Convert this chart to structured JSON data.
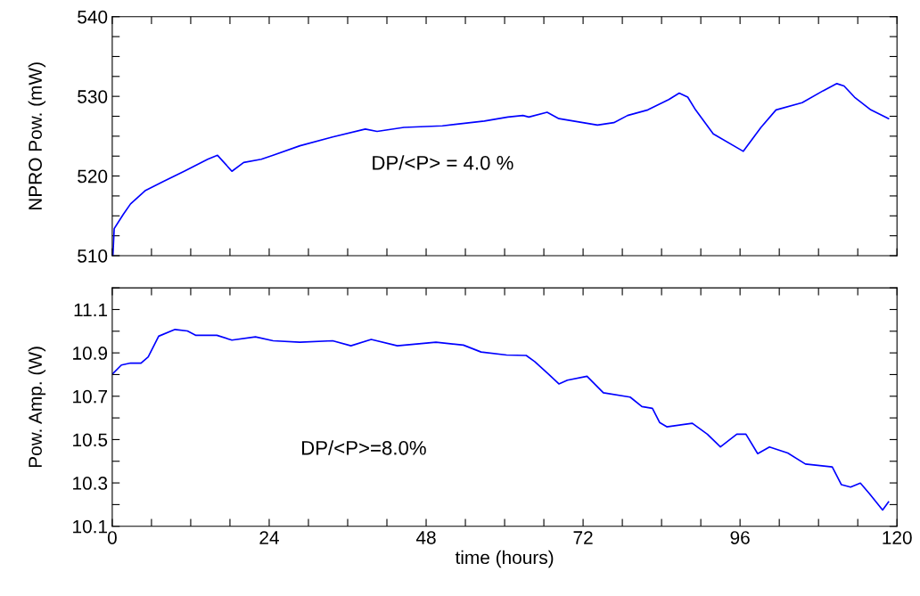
{
  "chart_data": [
    {
      "type": "line",
      "ylabel": "NPRO Pow. (mW)",
      "tick_labels": "y",
      "grid": false,
      "legend": false,
      "xlim": [
        0,
        120
      ],
      "xticks": [
        0,
        {
          "value": 6,
          "label": null
        },
        {
          "value": 12,
          "label": null
        },
        {
          "value": 18,
          "label": null
        },
        24,
        {
          "value": 30,
          "label": null
        },
        {
          "value": 36,
          "label": null
        },
        {
          "value": 42,
          "label": null
        },
        48,
        {
          "value": 54,
          "label": null
        },
        {
          "value": 60,
          "label": null
        },
        {
          "value": 66,
          "label": null
        },
        72,
        {
          "value": 78,
          "label": null
        },
        {
          "value": 84,
          "label": null
        },
        {
          "value": 90,
          "label": null
        },
        96,
        {
          "value": 102,
          "label": null
        },
        {
          "value": 108,
          "label": null
        },
        {
          "value": 114,
          "label": null
        },
        120
      ],
      "ylim": [
        510,
        540
      ],
      "yticks": [
        510,
        {
          "value": 512.5,
          "label": null
        },
        {
          "value": 515,
          "label": null
        },
        {
          "value": 517.5,
          "label": null
        },
        520,
        {
          "value": 522.5,
          "label": null
        },
        {
          "value": 525,
          "label": null
        },
        {
          "value": 527.5,
          "label": null
        },
        530,
        {
          "value": 532.5,
          "label": null
        },
        {
          "value": 535,
          "label": null
        },
        {
          "value": 537.5,
          "label": null
        },
        540
      ],
      "annotations": [
        "DP/<P> = 4.0 %"
      ],
      "series": [
        {
          "color": "#0000ff",
          "line_style": "solid",
          "marker": "none",
          "x": [
            0.1,
            0.3,
            1.7,
            2.8,
            5.1,
            7.8,
            11.0,
            14.6,
            16.1,
            18.3,
            20.1,
            22.8,
            24.6,
            28.7,
            33.7,
            38.7,
            40.5,
            44.6,
            50.5,
            56.9,
            60.5,
            62.8,
            63.7,
            66.5,
            68.3,
            74.2,
            76.7,
            78.8,
            81.9,
            85.1,
            86.7,
            88.0,
            89.2,
            91.9,
            96.5,
            99.2,
            101.5,
            105.5,
            108.7,
            110.8,
            111.9,
            113.5,
            116.0,
            118.7
          ],
          "values": [
            510.0,
            513.4,
            515.2,
            516.5,
            518.2,
            519.3,
            520.6,
            522.1,
            522.6,
            520.6,
            521.7,
            522.1,
            522.6,
            523.8,
            524.9,
            525.9,
            525.6,
            526.1,
            526.3,
            526.9,
            527.4,
            527.6,
            527.4,
            528.0,
            527.2,
            526.4,
            526.7,
            527.6,
            528.3,
            529.6,
            530.4,
            529.9,
            528.3,
            525.3,
            523.1,
            526.1,
            528.3,
            529.2,
            530.7,
            531.6,
            531.3,
            529.9,
            528.3,
            527.2
          ]
        }
      ]
    },
    {
      "type": "line",
      "xlabel": "time (hours)",
      "ylabel": "Pow. Amp. (W)",
      "grid": false,
      "legend": false,
      "xlim": [
        0,
        120
      ],
      "xticks": [
        0,
        {
          "value": 6,
          "label": null
        },
        {
          "value": 12,
          "label": null
        },
        {
          "value": 18,
          "label": null
        },
        24,
        {
          "value": 30,
          "label": null
        },
        {
          "value": 36,
          "label": null
        },
        {
          "value": 42,
          "label": null
        },
        48,
        {
          "value": 54,
          "label": null
        },
        {
          "value": 60,
          "label": null
        },
        {
          "value": 66,
          "label": null
        },
        72,
        {
          "value": 78,
          "label": null
        },
        {
          "value": 84,
          "label": null
        },
        {
          "value": 90,
          "label": null
        },
        96,
        {
          "value": 102,
          "label": null
        },
        {
          "value": 108,
          "label": null
        },
        {
          "value": 114,
          "label": null
        },
        120
      ],
      "ylim": [
        10.1,
        11.2
      ],
      "yticks": [
        10.1,
        {
          "value": 10.2,
          "label": null
        },
        10.3,
        {
          "value": 10.4,
          "label": null
        },
        10.5,
        {
          "value": 10.6,
          "label": null
        },
        10.7,
        {
          "value": 10.8,
          "label": null
        },
        10.9,
        {
          "value": 11.0,
          "label": null
        },
        11.1,
        {
          "value": 11.2,
          "label": null
        }
      ],
      "annotations": [
        "DP/<P>=8.0%"
      ],
      "series": [
        {
          "color": "#0000ff",
          "line_style": "solid",
          "marker": "none",
          "x": [
            0.1,
            1.4,
            2.8,
            4.4,
            5.5,
            7.1,
            9.6,
            11.5,
            12.8,
            16.0,
            18.3,
            21.9,
            24.6,
            28.7,
            33.7,
            36.5,
            39.6,
            43.6,
            49.5,
            53.7,
            56.4,
            60.3,
            63.3,
            64.6,
            66.7,
            68.3,
            69.6,
            72.6,
            75.1,
            79.2,
            81.0,
            82.6,
            83.7,
            84.8,
            88.7,
            91.0,
            93.0,
            95.5,
            96.9,
            98.7,
            100.5,
            103.3,
            106.0,
            110.1,
            111.5,
            112.9,
            114.4,
            115.8,
            117.8,
            118.7
          ],
          "values": [
            10.805,
            10.844,
            10.853,
            10.853,
            10.881,
            10.977,
            11.008,
            11.001,
            10.981,
            10.981,
            10.959,
            10.974,
            10.956,
            10.949,
            10.956,
            10.933,
            10.962,
            10.933,
            10.949,
            10.936,
            10.904,
            10.89,
            10.888,
            10.86,
            10.802,
            10.757,
            10.774,
            10.792,
            10.716,
            10.696,
            10.652,
            10.644,
            10.579,
            10.559,
            10.575,
            10.525,
            10.466,
            10.525,
            10.525,
            10.435,
            10.466,
            10.438,
            10.387,
            10.374,
            10.292,
            10.281,
            10.299,
            10.25,
            10.175,
            10.212
          ]
        }
      ]
    }
  ]
}
